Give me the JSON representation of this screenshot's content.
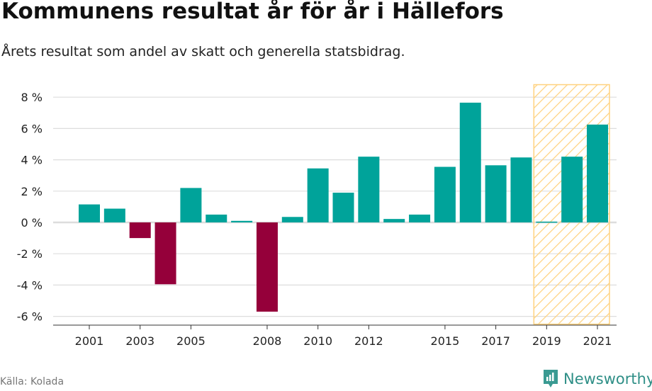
{
  "title": "Kommunens resultat år för år i Hällefors",
  "subtitle": "Årets resultat som andel av skatt och generella statsbidrag.",
  "source": "Källa: Kolada",
  "brand": "Newsworthy",
  "colors": {
    "positive": "#00a39a",
    "negative": "#95003a",
    "highlight": "#ffd27f",
    "grid": "#dddddd"
  },
  "chart_data": {
    "type": "bar",
    "title": "Kommunens resultat år för år i Hällefors",
    "ylabel": "",
    "xlabel": "",
    "ylim": [
      -6.5,
      8.8
    ],
    "yticks": [
      8,
      6,
      4,
      2,
      0,
      -2,
      -4,
      -6
    ],
    "ytick_labels": [
      "8 %",
      "6 %",
      "4 %",
      "2 %",
      "0 %",
      "-2 %",
      "-4 %",
      "-6 %"
    ],
    "categories": [
      2001,
      2002,
      2003,
      2004,
      2005,
      2006,
      2007,
      2008,
      2009,
      2010,
      2011,
      2012,
      2013,
      2014,
      2015,
      2016,
      2017,
      2018,
      2019,
      2020,
      2021
    ],
    "xtick_labels": [
      "2001",
      "2003",
      "2005",
      "2008",
      "2010",
      "2012",
      "2015",
      "2017",
      "2019",
      "2021"
    ],
    "values": [
      1.15,
      0.88,
      -1.0,
      -3.95,
      2.2,
      0.5,
      0.1,
      -5.7,
      0.35,
      3.45,
      1.9,
      4.2,
      0.22,
      0.5,
      3.55,
      7.65,
      3.65,
      4.15,
      0.05,
      4.2,
      6.25
    ],
    "highlight_range": [
      2019,
      2021
    ],
    "grid": true
  }
}
